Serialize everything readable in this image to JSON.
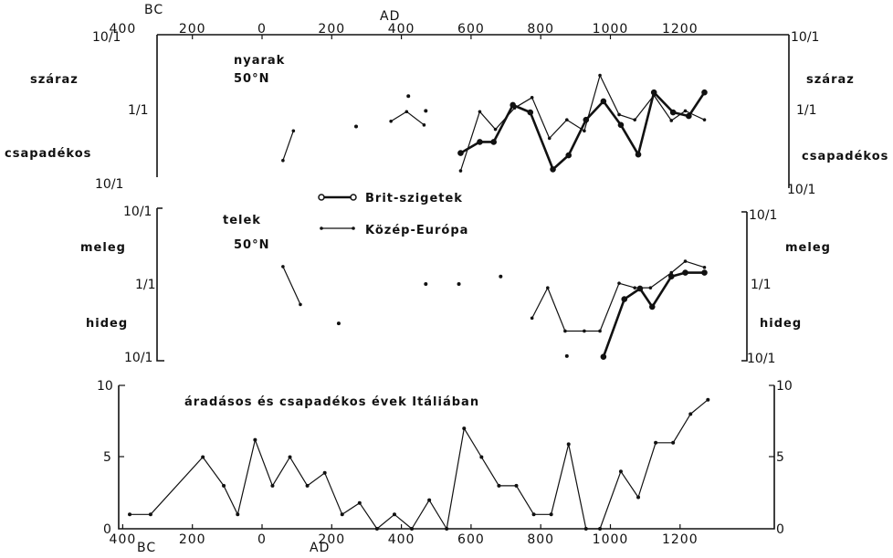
{
  "chart_data": [
    {
      "type": "line",
      "id": "summers",
      "title": "nyarak",
      "subtitle": "50°N",
      "ylabels": {
        "top": "száraz",
        "bottom": "csapadékos"
      },
      "yticks": [
        "10/1",
        "1/1",
        "10/1"
      ],
      "yscale": "log",
      "ylim": [
        -1,
        1
      ],
      "series": [
        {
          "name": "Brit-szigetek",
          "points": [
            [
              570,
              -0.6
            ],
            [
              625,
              -0.45
            ],
            [
              665,
              -0.45
            ],
            [
              720,
              0.05
            ],
            [
              770,
              -0.05
            ],
            [
              835,
              -0.82
            ],
            [
              880,
              -0.63
            ],
            [
              930,
              -0.15
            ],
            [
              980,
              0.1
            ],
            [
              1030,
              -0.22
            ],
            [
              1080,
              -0.62
            ],
            [
              1125,
              0.22
            ],
            [
              1180,
              -0.05
            ],
            [
              1225,
              -0.1
            ],
            [
              1270,
              0.22
            ]
          ]
        },
        {
          "name": "Közép-Európa",
          "segments": [
            [
              [
                60,
                -0.7
              ],
              [
                90,
                -0.3
              ]
            ],
            [
              [
                370,
                -0.17
              ],
              [
                415,
                -0.04
              ],
              [
                465,
                -0.22
              ]
            ],
            [
              [
                570,
                -0.84
              ],
              [
                625,
                -0.04
              ],
              [
                670,
                -0.28
              ],
              [
                725,
                0.01
              ],
              [
                775,
                0.15
              ],
              [
                825,
                -0.4
              ],
              [
                875,
                -0.15
              ],
              [
                925,
                -0.3
              ],
              [
                970,
                0.45
              ],
              [
                1025,
                -0.08
              ],
              [
                1070,
                -0.15
              ],
              [
                1125,
                0.18
              ],
              [
                1175,
                -0.16
              ],
              [
                1215,
                -0.03
              ],
              [
                1270,
                -0.15
              ]
            ]
          ],
          "dots": [
            [
              270,
              -0.24
            ],
            [
              420,
              0.17
            ],
            [
              470,
              -0.03
            ]
          ]
        }
      ]
    },
    {
      "type": "line",
      "id": "winters",
      "title": "telek",
      "subtitle": "50°N",
      "ylabels": {
        "top": "meleg",
        "bottom": "hideg"
      },
      "yticks": [
        "10/1",
        "1/1",
        "10/1"
      ],
      "yscale": "log",
      "ylim": [
        -1,
        1
      ],
      "series": [
        {
          "name": "Brit-szigetek",
          "points": [
            [
              980,
              -0.96
            ],
            [
              1040,
              -0.2
            ],
            [
              1085,
              -0.06
            ],
            [
              1120,
              -0.3
            ],
            [
              1175,
              0.1
            ],
            [
              1215,
              0.15
            ],
            [
              1270,
              0.15
            ]
          ]
        },
        {
          "name": "Közép-Európa",
          "segments": [
            [
              [
                60,
                0.23
              ],
              [
                110,
                -0.27
              ]
            ],
            [
              [
                775,
                -0.45
              ],
              [
                820,
                -0.05
              ],
              [
                870,
                -0.62
              ],
              [
                925,
                -0.62
              ],
              [
                970,
                -0.62
              ],
              [
                1025,
                0.01
              ],
              [
                1070,
                -0.05
              ],
              [
                1115,
                -0.05
              ],
              [
                1175,
                0.15
              ],
              [
                1215,
                0.3
              ],
              [
                1270,
                0.22
              ]
            ]
          ],
          "dots": [
            [
              220,
              -0.52
            ],
            [
              470,
              0.0
            ],
            [
              565,
              0.0
            ],
            [
              685,
              0.1
            ],
            [
              875,
              -0.95
            ]
          ]
        }
      ]
    },
    {
      "type": "line",
      "id": "italy",
      "title": "áradásos és csapadékos évek Itáliában",
      "ylim": [
        0,
        10
      ],
      "yticks": [
        "0",
        "5",
        "10"
      ],
      "series": [
        {
          "name": "",
          "points": [
            [
              -380,
              1
            ],
            [
              -320,
              1
            ],
            [
              -170,
              5
            ],
            [
              -110,
              3
            ],
            [
              -70,
              1
            ],
            [
              -20,
              6.2
            ],
            [
              30,
              3
            ],
            [
              80,
              5
            ],
            [
              130,
              3
            ],
            [
              180,
              3.9
            ],
            [
              230,
              1
            ],
            [
              280,
              1.8
            ],
            [
              330,
              0
            ],
            [
              380,
              1
            ],
            [
              430,
              0
            ],
            [
              480,
              2
            ],
            [
              530,
              0
            ],
            [
              580,
              7
            ],
            [
              630,
              5
            ],
            [
              680,
              3
            ],
            [
              730,
              3
            ],
            [
              780,
              1
            ],
            [
              830,
              1
            ],
            [
              880,
              5.9
            ],
            [
              930,
              0
            ],
            [
              970,
              0
            ],
            [
              1030,
              4
            ],
            [
              1080,
              2.2
            ],
            [
              1130,
              6
            ],
            [
              1180,
              6
            ],
            [
              1230,
              8
            ],
            [
              1280,
              9
            ]
          ]
        }
      ]
    }
  ],
  "axis": {
    "x_ticks_top": [
      "400",
      "200",
      "0",
      "200",
      "400",
      "600",
      "800",
      "1000",
      "1200"
    ],
    "x_ticks_bottom": [
      "400",
      "200",
      "0",
      "200",
      "400",
      "600",
      "800",
      "1000",
      "1200"
    ],
    "era_bc": "BC",
    "era_ad": "AD",
    "xlim": [
      -430,
      1330
    ]
  },
  "legend": {
    "brit": "Brit-szigetek",
    "ce": "Közép-Európa"
  }
}
